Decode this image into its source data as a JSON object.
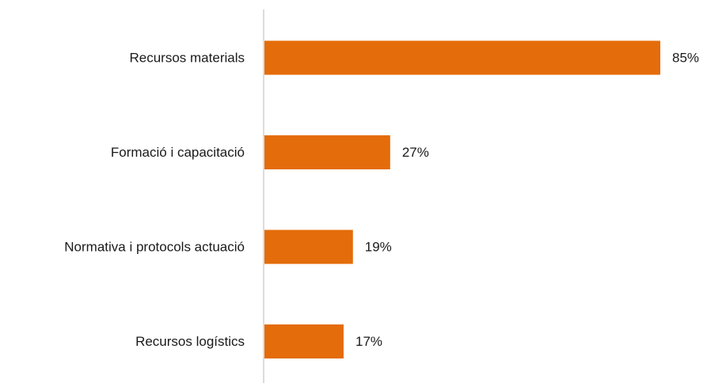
{
  "chart_data": {
    "type": "bar",
    "orientation": "horizontal",
    "categories": [
      "Recursos materials",
      "Formació i capacitació",
      "Normativa i protocols actuació",
      "Recursos logístics"
    ],
    "values": [
      85,
      27,
      19,
      17
    ],
    "value_labels": [
      "85%",
      "27%",
      "19%",
      "17%"
    ],
    "title": "",
    "xlabel": "",
    "ylabel": "",
    "xlim": [
      0,
      85
    ],
    "grid": false,
    "legend": "none",
    "bar_color": "#E46C0A",
    "axis_color": "#D0D0D0"
  }
}
